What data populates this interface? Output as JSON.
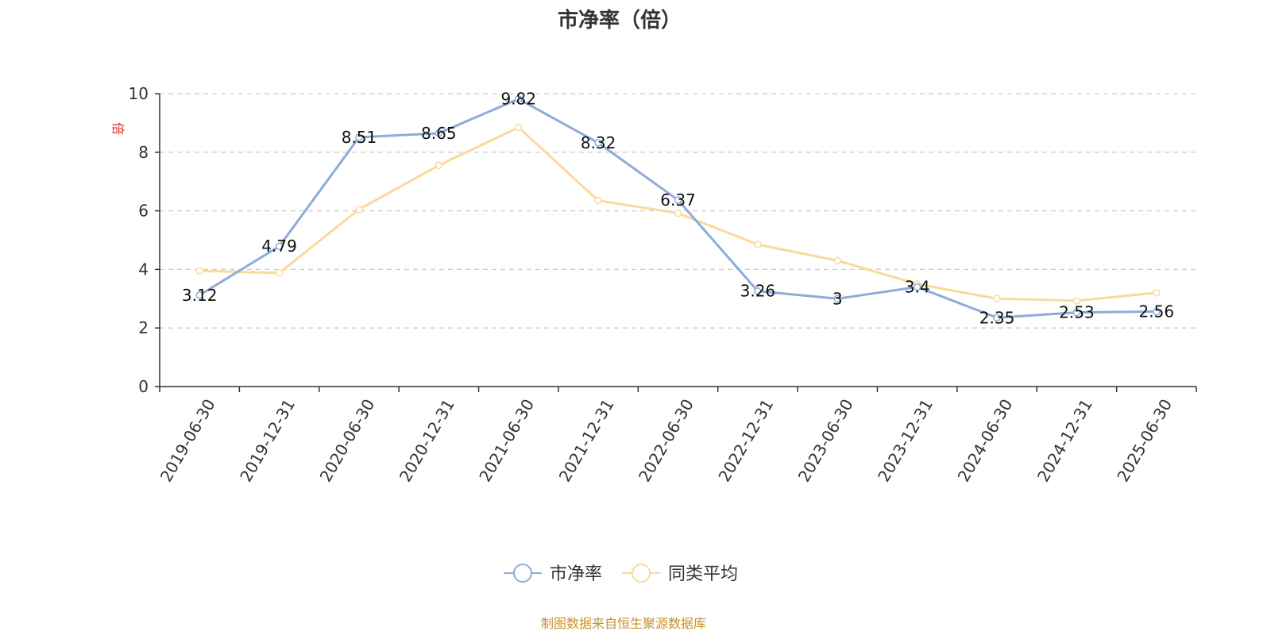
{
  "chart_data": {
    "type": "line",
    "title": "市净率（倍）",
    "ylabel": "倍",
    "ylim": [
      0,
      10
    ],
    "yticks": [
      0,
      2,
      4,
      6,
      8,
      10
    ],
    "grid": true,
    "legend_position": "bottom-center",
    "categories": [
      "2019-06-30",
      "2019-12-31",
      "2020-06-30",
      "2020-12-31",
      "2021-06-30",
      "2021-12-31",
      "2022-06-30",
      "2022-12-31",
      "2023-06-30",
      "2023-12-31",
      "2024-06-30",
      "2024-12-31",
      "2025-06-30"
    ],
    "series": [
      {
        "name": "市净率",
        "color": "#8eacd8",
        "values": [
          3.12,
          4.79,
          8.51,
          8.65,
          9.82,
          8.32,
          6.37,
          3.26,
          3,
          3.4,
          2.35,
          2.53,
          2.56
        ],
        "labels": [
          "3.12",
          "4.79",
          "8.51",
          "8.65",
          "9.82",
          "8.32",
          "6.37",
          "3.26",
          "3",
          "3.4",
          "2.35",
          "2.53",
          "2.56"
        ]
      },
      {
        "name": "同类平均",
        "color": "#fbd99a",
        "values": [
          3.95,
          3.88,
          6.05,
          7.55,
          8.85,
          6.35,
          5.92,
          4.85,
          4.3,
          3.5,
          3.0,
          2.93,
          3.2
        ]
      }
    ],
    "source": "制图数据来自恒生聚源数据库"
  }
}
